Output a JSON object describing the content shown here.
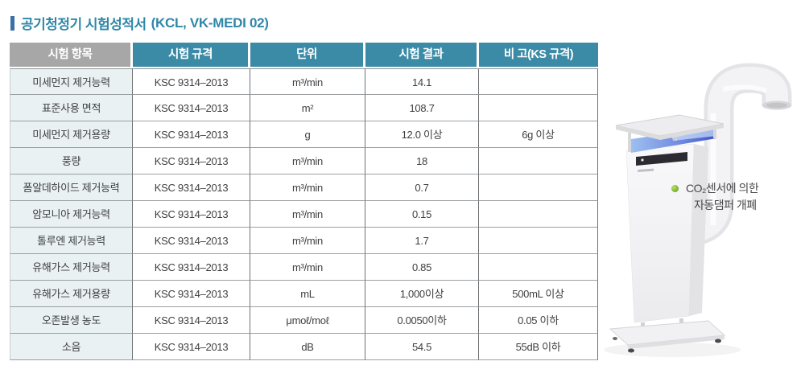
{
  "title": {
    "main": "공기청정기 시험성적서",
    "suffix": "(KCL, VK-MEDI 02)"
  },
  "table": {
    "headers": [
      "시험 항목",
      "시험 규격",
      "단위",
      "시험 결과",
      "비 고(KS 규격)"
    ],
    "rows": [
      {
        "item": "미세먼지 제거능력",
        "standard": "KSC 9314–2013",
        "unit": "m³/min",
        "result": "14.1",
        "note": ""
      },
      {
        "item": "표준사용 면적",
        "standard": "KSC 9314–2013",
        "unit": "m²",
        "result": "108.7",
        "note": ""
      },
      {
        "item": "미세먼지 제거용량",
        "standard": "KSC 9314–2013",
        "unit": "g",
        "result": "12.0 이상",
        "note": "6g 이상"
      },
      {
        "item": "풍량",
        "standard": "KSC 9314–2013",
        "unit": "m³/min",
        "result": "18",
        "note": ""
      },
      {
        "item": "폼알데하이드 제거능력",
        "standard": "KSC 9314–2013",
        "unit": "m³/min",
        "result": "0.7",
        "note": ""
      },
      {
        "item": "암모니아 제거능력",
        "standard": "KSC 9314–2013",
        "unit": "m³/min",
        "result": "0.15",
        "note": ""
      },
      {
        "item": "톨루엔 제거능력",
        "standard": "KSC 9314–2013",
        "unit": "m³/min",
        "result": "1.7",
        "note": ""
      },
      {
        "item": "유해가스 제거능력",
        "standard": "KSC 9314–2013",
        "unit": "m³/min",
        "result": "0.85",
        "note": ""
      },
      {
        "item": "유해가스 제거용량",
        "standard": "KSC 9314–2013",
        "unit": "mL",
        "result": "1,000이상",
        "note": "500mL 이상"
      },
      {
        "item": "오존발생 농도",
        "standard": "KSC 9314–2013",
        "unit": "μmoℓ/moℓ",
        "result": "0.0050이하",
        "note": "0.05 이하"
      },
      {
        "item": "소음",
        "standard": "KSC 9314–2013",
        "unit": "dB",
        "result": "54.5",
        "note": "55dB 이하"
      }
    ]
  },
  "annotation": {
    "line1": "CO₂센서에 의한",
    "line2": "자동댐퍼 개폐"
  },
  "product_image": "air-purifier-tower-with-exhaust-duct",
  "colors": {
    "header_teal": "#3b8aa6",
    "header_gray": "#a7a7a7",
    "item_col_bg": "#eaf1f3",
    "title": "#2f87a8",
    "accent_bar": "#3a6fa8",
    "bullet_green": "#76b229",
    "uv_glow": "#4a5fd0"
  }
}
